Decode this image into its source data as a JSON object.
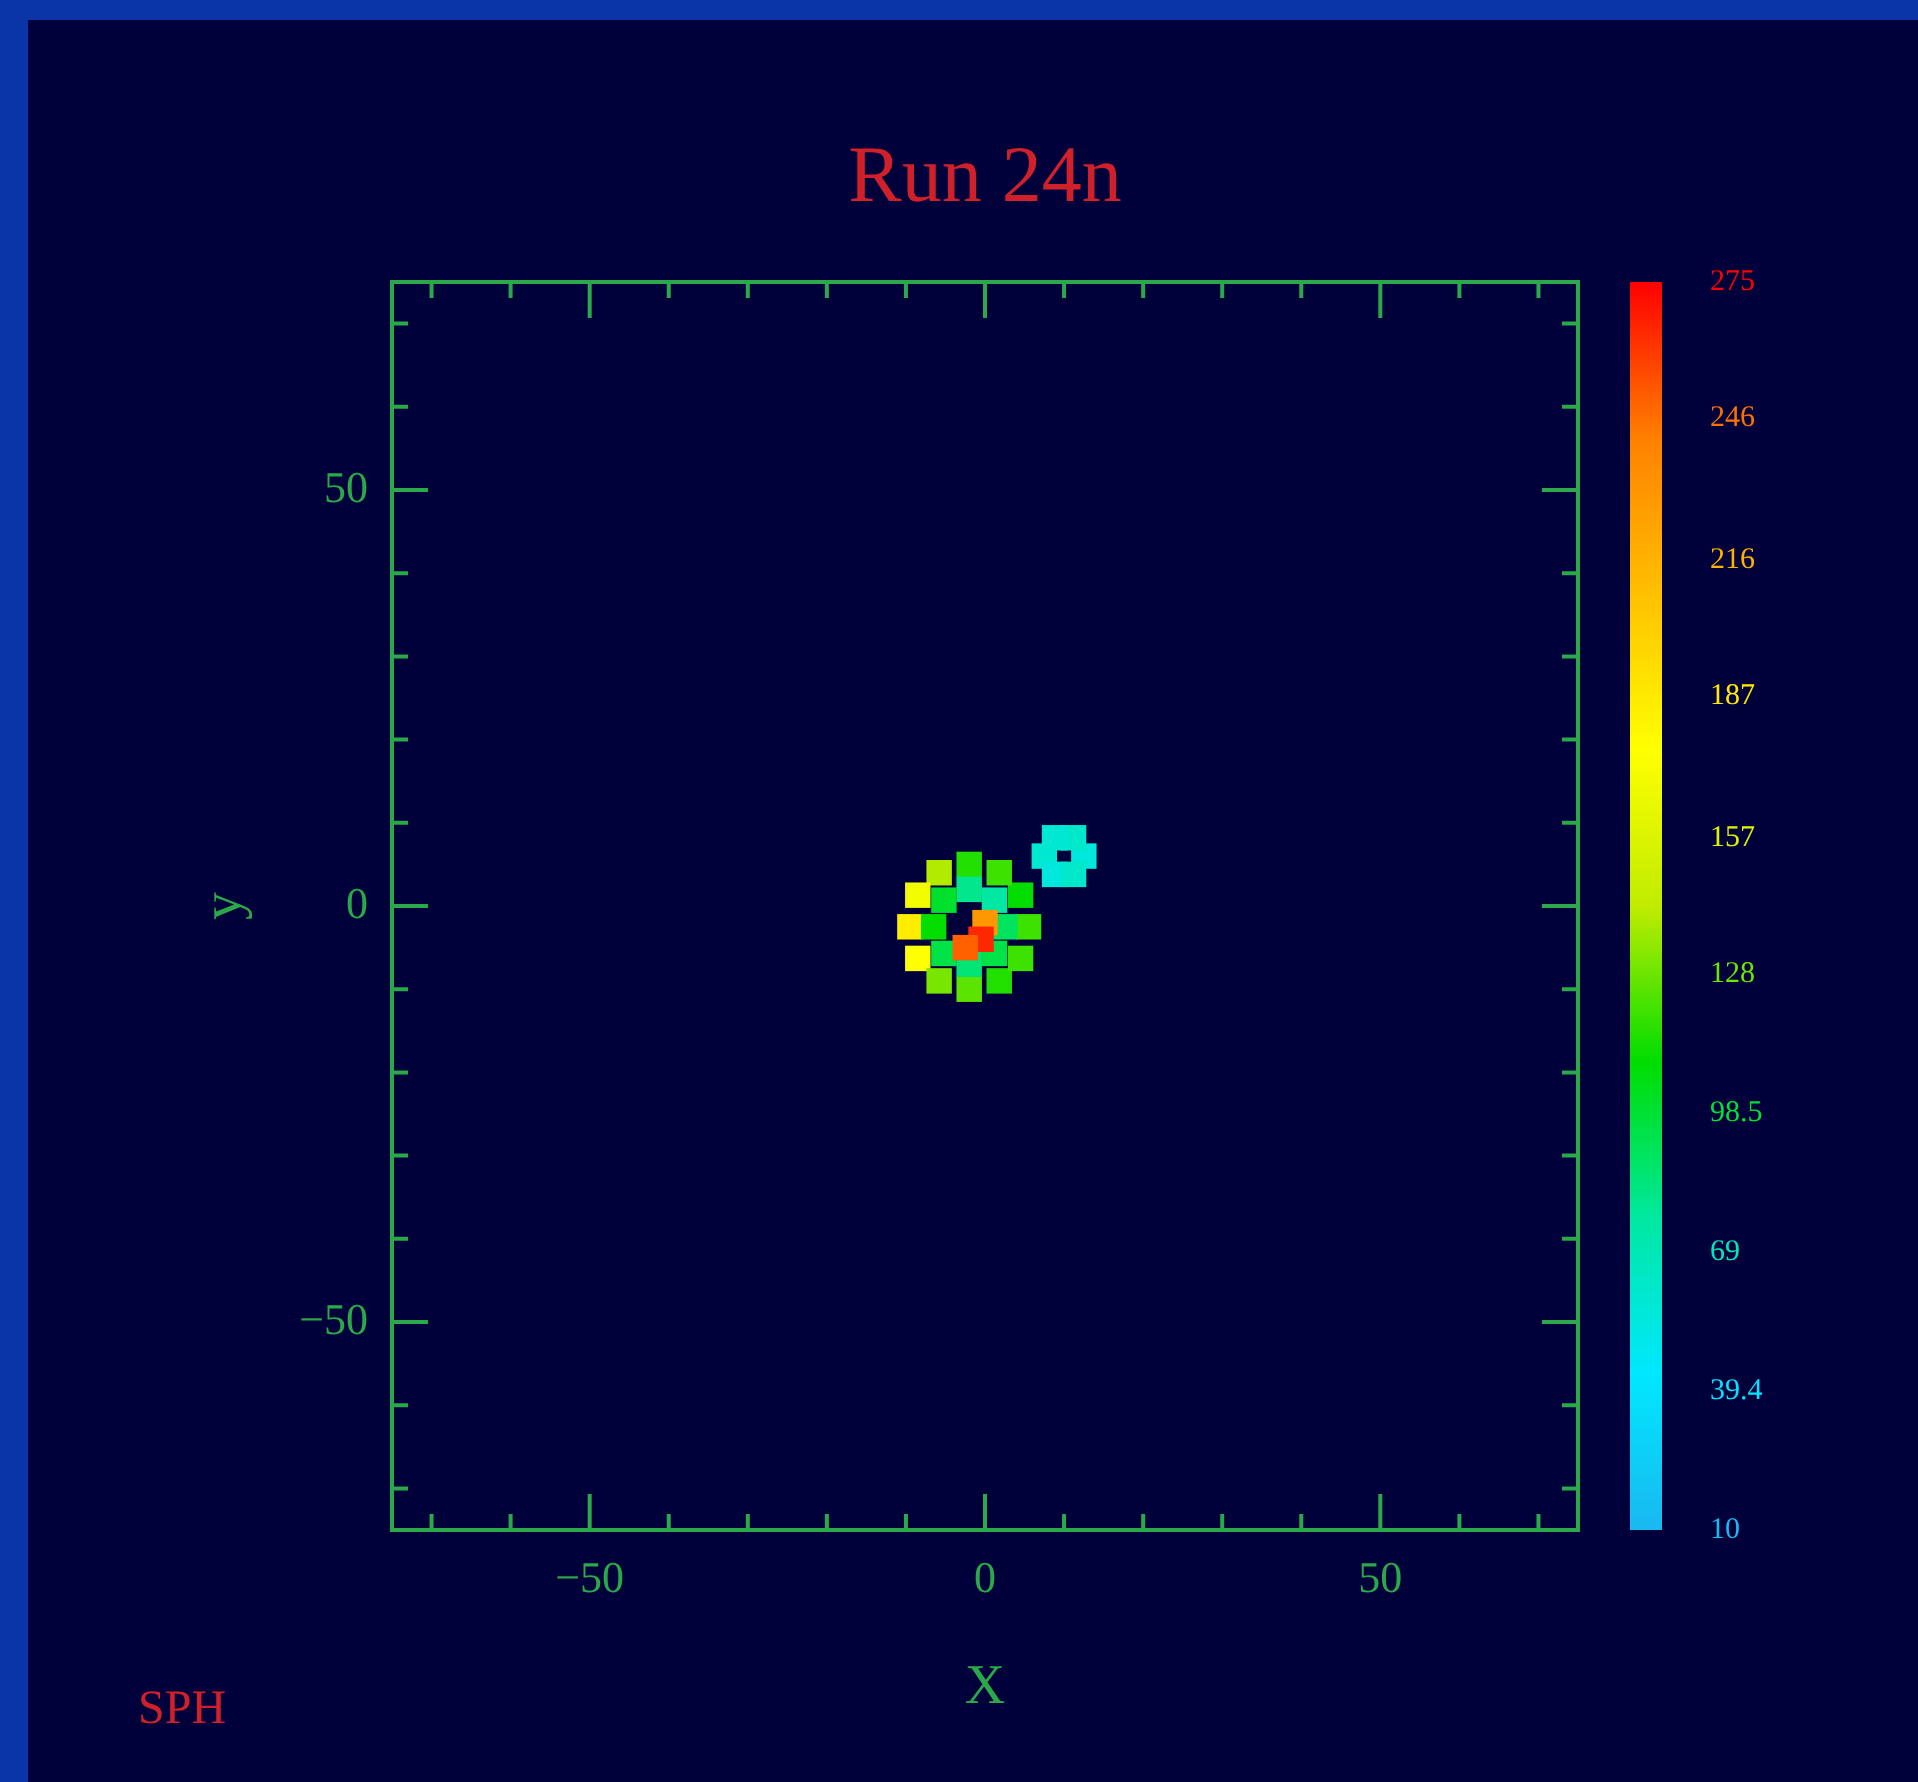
{
  "chart_data": {
    "type": "scatter",
    "title": "Run 24n",
    "xlabel": "X",
    "ylabel": "y",
    "annotations": [
      "SPH"
    ],
    "x": [
      5.5,
      4.5,
      1.8,
      -2,
      -5.8,
      -8.5,
      -9.5,
      -8.5,
      -5.8,
      -2,
      1.8,
      4.5,
      2.5,
      1.2,
      -2,
      -5.2,
      -6.5,
      -5.2,
      -2,
      1.2,
      0,
      -0.5,
      -2.5,
      12.5,
      11.2,
      8.8,
      7.5,
      8.8,
      11.2
    ],
    "values": [
      -2.5,
      1.3,
      4,
      5,
      4,
      1.3,
      -2.5,
      -6.3,
      -9,
      -10,
      -9,
      -6.3,
      -2.5,
      0.7,
      2,
      0.7,
      -2.5,
      -5.7,
      -7,
      -5.7,
      -2,
      -4,
      -5,
      6,
      8.2,
      8.2,
      6,
      3.8,
      3.8
    ],
    "cvalues": [
      120,
      110,
      120,
      115,
      140,
      170,
      185,
      175,
      130,
      125,
      115,
      120,
      90,
      75,
      80,
      100,
      110,
      95,
      85,
      95,
      230,
      265,
      250,
      55,
      62,
      58,
      60,
      55,
      62
    ],
    "marker": "square",
    "xlim": [
      -75,
      75
    ],
    "ylim": [
      -75,
      75
    ],
    "xticks": [
      {
        "value": -70,
        "label": null
      },
      {
        "value": -60,
        "label": null
      },
      -50,
      {
        "value": -40,
        "label": null
      },
      {
        "value": -30,
        "label": null
      },
      {
        "value": -20,
        "label": null
      },
      {
        "value": -10,
        "label": null
      },
      0,
      {
        "value": 10,
        "label": null
      },
      {
        "value": 20,
        "label": null
      },
      {
        "value": 30,
        "label": null
      },
      {
        "value": 40,
        "label": null
      },
      50,
      {
        "value": 60,
        "label": null
      },
      {
        "value": 70,
        "label": null
      }
    ],
    "yticks": [
      {
        "value": -70,
        "label": null
      },
      {
        "value": -60,
        "label": null
      },
      -50,
      {
        "value": -40,
        "label": null
      },
      {
        "value": -30,
        "label": null
      },
      {
        "value": -20,
        "label": null
      },
      {
        "value": -10,
        "label": null
      },
      0,
      {
        "value": 10,
        "label": null
      },
      {
        "value": 20,
        "label": null
      },
      {
        "value": 30,
        "label": null
      },
      {
        "value": 40,
        "label": null
      },
      50,
      {
        "value": 60,
        "label": null
      },
      {
        "value": 70,
        "label": null
      }
    ],
    "clim": [
      10,
      275
    ],
    "cticks": [
      10,
      39.4,
      69.0,
      98.5,
      128,
      157,
      187,
      216,
      246,
      275
    ],
    "legend": false
  }
}
